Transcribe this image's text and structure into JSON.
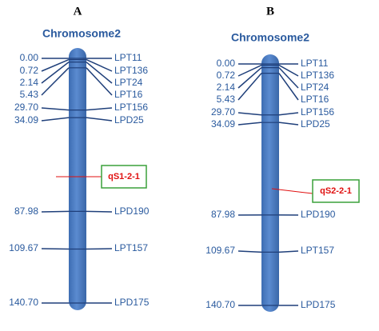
{
  "panels": [
    {
      "label": "A",
      "title": "Chromosome2",
      "markers": [
        {
          "position": "0.00",
          "name": "LPT11"
        },
        {
          "position": "0.72",
          "name": "LPT136"
        },
        {
          "position": "2.14",
          "name": "LPT24"
        },
        {
          "position": "5.43",
          "name": "LPT16"
        },
        {
          "position": "29.70",
          "name": "LPT156"
        },
        {
          "position": "34.09",
          "name": "LPD25"
        },
        {
          "position": "87.98",
          "name": "LPD190"
        },
        {
          "position": "109.67",
          "name": "LPT157"
        },
        {
          "position": "140.70",
          "name": "LPD175"
        }
      ],
      "qtl": "qS1-2-1"
    },
    {
      "label": "B",
      "title": "Chromosome2",
      "markers": [
        {
          "position": "0.00",
          "name": "LPT11"
        },
        {
          "position": "0.72",
          "name": "LPT136"
        },
        {
          "position": "2.14",
          "name": "LPT24"
        },
        {
          "position": "5.43",
          "name": "LPT16"
        },
        {
          "position": "29.70",
          "name": "LPT156"
        },
        {
          "position": "34.09",
          "name": "LPD25"
        },
        {
          "position": "87.98",
          "name": "LPD190"
        },
        {
          "position": "109.67",
          "name": "LPT157"
        },
        {
          "position": "140.70",
          "name": "LPD175"
        }
      ],
      "qtl": "qS2-2-1"
    }
  ]
}
